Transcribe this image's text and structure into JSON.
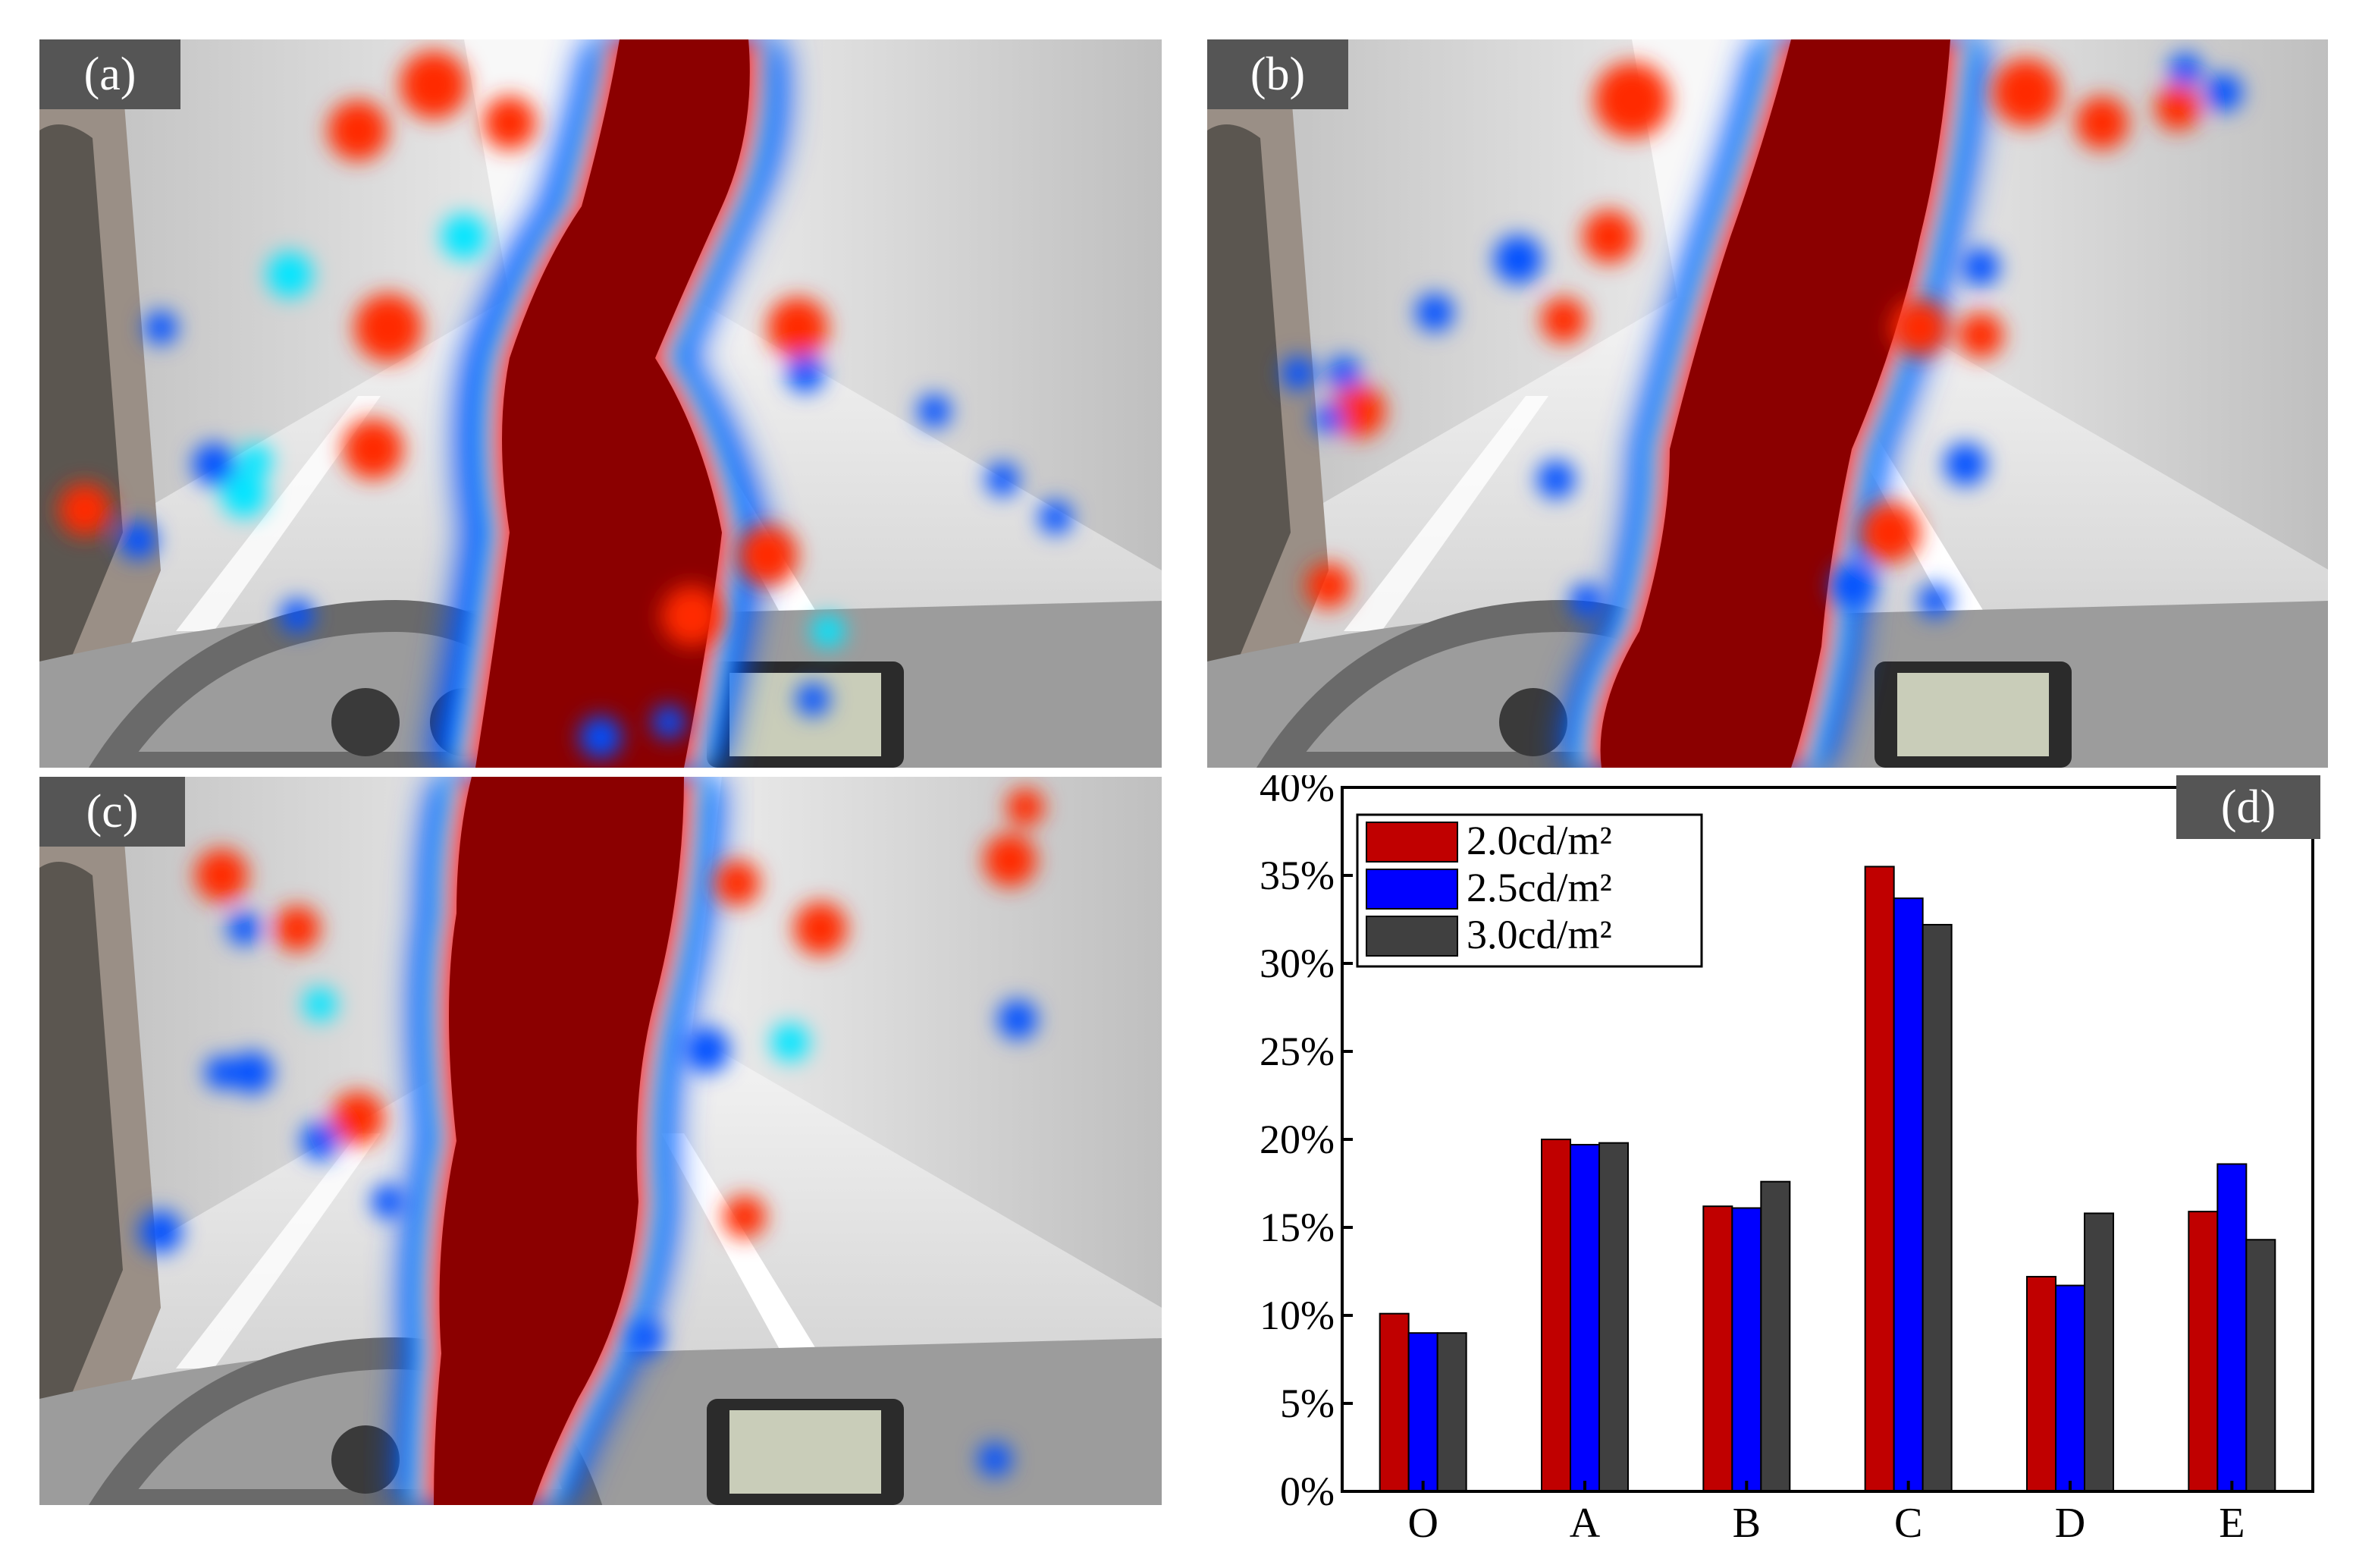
{
  "panels": [
    {
      "label": "(a)",
      "description": "eye-tracking heat map over tunnel driving view"
    },
    {
      "label": "(b)",
      "description": "eye-tracking heat map over tunnel driving view"
    },
    {
      "label": "(c)",
      "description": "eye-tracking heat map over tunnel driving view"
    }
  ],
  "chart_label": "(d)",
  "colors": {
    "series": [
      "#c00000",
      "#0000ff",
      "#404040"
    ],
    "heat_core": "#8b0000",
    "heat_mid": "#ff2a00",
    "heat_warm": "#ffd21a",
    "heat_cool": "#00e5ff",
    "heat_edge": "#0050ff"
  },
  "chart_data": {
    "type": "bar",
    "categories": [
      "O",
      "A",
      "B",
      "C",
      "D",
      "E"
    ],
    "series": [
      {
        "name": "2.0cd/m²",
        "values": [
          10.1,
          20.0,
          16.2,
          35.5,
          12.2,
          15.9
        ]
      },
      {
        "name": "2.5cd/m²",
        "values": [
          9.0,
          19.7,
          16.1,
          33.7,
          11.7,
          18.6
        ]
      },
      {
        "name": "3.0cd/m²",
        "values": [
          9.0,
          19.8,
          17.6,
          32.2,
          15.8,
          14.3
        ]
      }
    ],
    "ylim": [
      0,
      40
    ],
    "yticks": [
      "0%",
      "5%",
      "10%",
      "15%",
      "20%",
      "25%",
      "30%",
      "35%",
      "40%"
    ],
    "legend_position": "top-left",
    "grid": false
  }
}
